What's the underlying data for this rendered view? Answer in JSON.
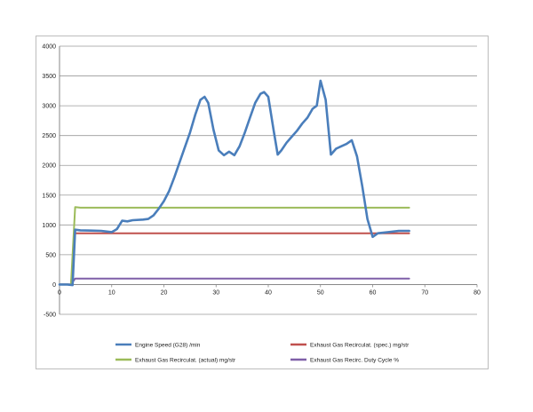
{
  "chart_data": {
    "type": "line",
    "title": "",
    "xlabel": "",
    "ylabel": "",
    "xlim": [
      0,
      80
    ],
    "ylim": [
      -500,
      4000
    ],
    "x_ticks": [
      0,
      10,
      20,
      30,
      40,
      50,
      60,
      70,
      80
    ],
    "y_ticks": [
      -500,
      0,
      500,
      1000,
      1500,
      2000,
      2500,
      3000,
      3500,
      4000
    ],
    "grid": "horizontal",
    "legend_position": "bottom",
    "series": [
      {
        "name": "Engine Speed (G28)  /min",
        "color": "#4a7ebb",
        "points": [
          [
            0,
            0
          ],
          [
            1.5,
            0
          ],
          [
            2.5,
            -10
          ],
          [
            3,
            920
          ],
          [
            4,
            910
          ],
          [
            6,
            905
          ],
          [
            8,
            900
          ],
          [
            10,
            880
          ],
          [
            11,
            930
          ],
          [
            12,
            1070
          ],
          [
            13,
            1060
          ],
          [
            14,
            1080
          ],
          [
            16,
            1090
          ],
          [
            17,
            1100
          ],
          [
            18,
            1160
          ],
          [
            19,
            1270
          ],
          [
            20,
            1400
          ],
          [
            21,
            1570
          ],
          [
            22,
            1800
          ],
          [
            23,
            2050
          ],
          [
            24,
            2300
          ],
          [
            25,
            2550
          ],
          [
            26,
            2850
          ],
          [
            27,
            3100
          ],
          [
            27.8,
            3150
          ],
          [
            28.5,
            3050
          ],
          [
            29.5,
            2600
          ],
          [
            30.5,
            2250
          ],
          [
            31.5,
            2170
          ],
          [
            32.5,
            2230
          ],
          [
            33.5,
            2170
          ],
          [
            34.5,
            2320
          ],
          [
            35.5,
            2550
          ],
          [
            36.5,
            2800
          ],
          [
            37.5,
            3050
          ],
          [
            38.5,
            3200
          ],
          [
            39.2,
            3230
          ],
          [
            40,
            3150
          ],
          [
            41,
            2600
          ],
          [
            41.8,
            2180
          ],
          [
            42.5,
            2250
          ],
          [
            43.5,
            2380
          ],
          [
            44.5,
            2480
          ],
          [
            45.5,
            2580
          ],
          [
            46.5,
            2700
          ],
          [
            47.5,
            2800
          ],
          [
            48.5,
            2950
          ],
          [
            49.3,
            3000
          ],
          [
            50,
            3420
          ],
          [
            51,
            3100
          ],
          [
            52,
            2180
          ],
          [
            53,
            2280
          ],
          [
            54,
            2320
          ],
          [
            55,
            2360
          ],
          [
            56,
            2420
          ],
          [
            57,
            2150
          ],
          [
            58,
            1650
          ],
          [
            59,
            1100
          ],
          [
            60,
            800
          ],
          [
            61,
            860
          ],
          [
            63,
            880
          ],
          [
            65,
            900
          ],
          [
            67,
            900
          ]
        ]
      },
      {
        "name": "Exhaust Gas Recirculat. (spec.)  mg/str",
        "color": "#c0504d",
        "points": [
          [
            0,
            0
          ],
          [
            2.2,
            0
          ],
          [
            3,
            860
          ],
          [
            67,
            860
          ]
        ]
      },
      {
        "name": "Exhaust Gas Recirculat. (actual)  mg/str",
        "color": "#9bbb59",
        "points": [
          [
            0,
            0
          ],
          [
            2.2,
            0
          ],
          [
            3,
            1300
          ],
          [
            4,
            1290
          ],
          [
            67,
            1290
          ]
        ]
      },
      {
        "name": "Exhaust Gas Recirc. Duty Cycle  %",
        "color": "#7f5fa8",
        "points": [
          [
            0,
            0
          ],
          [
            2.2,
            0
          ],
          [
            3,
            100
          ],
          [
            67,
            100
          ]
        ]
      }
    ]
  }
}
